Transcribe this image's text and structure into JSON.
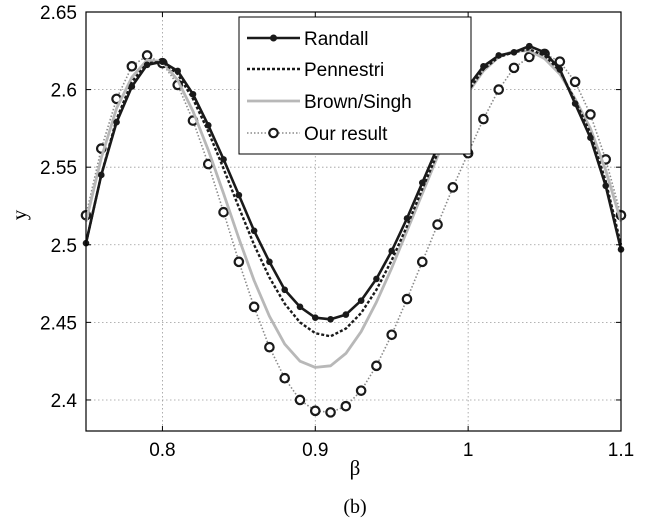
{
  "chart_data": {
    "type": "line",
    "xlabel": "β",
    "ylabel": "y",
    "caption": "(b)",
    "xlim": [
      0.75,
      1.1
    ],
    "ylim": [
      2.38,
      2.65
    ],
    "xticks": [
      0.8,
      0.9,
      1.0,
      1.1
    ],
    "xtick_labels": [
      "0.8",
      "0.9",
      "1",
      "1.1"
    ],
    "yticks": [
      2.4,
      2.45,
      2.5,
      2.55,
      2.6,
      2.65
    ],
    "ytick_labels": [
      "2.4",
      "2.45",
      "2.5",
      "2.55",
      "2.6",
      "2.65"
    ],
    "grid": true,
    "legend_position": "top-center",
    "series": [
      {
        "name": "Randall",
        "style": "solid-dot",
        "color": "#1a1a1a",
        "x": [
          0.75,
          0.76,
          0.77,
          0.78,
          0.79,
          0.8,
          0.81,
          0.82,
          0.83,
          0.84,
          0.85,
          0.86,
          0.87,
          0.88,
          0.89,
          0.9,
          0.91,
          0.92,
          0.93,
          0.94,
          0.95,
          0.96,
          0.97,
          0.98,
          0.99,
          1.0,
          1.01,
          1.02,
          1.03,
          1.04,
          1.05,
          1.06,
          1.07,
          1.08,
          1.09,
          1.1
        ],
        "y": [
          2.501,
          2.545,
          2.579,
          2.602,
          2.616,
          2.618,
          2.612,
          2.597,
          2.577,
          2.555,
          2.532,
          2.509,
          2.489,
          2.471,
          2.46,
          2.453,
          2.452,
          2.455,
          2.464,
          2.478,
          2.496,
          2.517,
          2.54,
          2.563,
          2.584,
          2.602,
          2.615,
          2.622,
          2.624,
          2.628,
          2.624,
          2.613,
          2.591,
          2.569,
          2.538,
          2.497
        ]
      },
      {
        "name": "Pennestri",
        "style": "dashed",
        "color": "#1a1a1a",
        "x": [
          0.75,
          0.76,
          0.77,
          0.78,
          0.79,
          0.8,
          0.81,
          0.82,
          0.83,
          0.84,
          0.85,
          0.86,
          0.87,
          0.88,
          0.89,
          0.9,
          0.91,
          0.92,
          0.93,
          0.94,
          0.95,
          0.96,
          0.97,
          0.98,
          0.99,
          1.0,
          1.01,
          1.02,
          1.03,
          1.04,
          1.05,
          1.06,
          1.07,
          1.08,
          1.09,
          1.1
        ],
        "y": [
          2.501,
          2.545,
          2.581,
          2.605,
          2.617,
          2.618,
          2.61,
          2.594,
          2.573,
          2.549,
          2.524,
          2.5,
          2.479,
          2.462,
          2.45,
          2.443,
          2.441,
          2.446,
          2.456,
          2.471,
          2.49,
          2.512,
          2.536,
          2.559,
          2.58,
          2.599,
          2.613,
          2.621,
          2.624,
          2.626,
          2.622,
          2.612,
          2.593,
          2.572,
          2.541,
          2.5
        ]
      },
      {
        "name": "Brown/Singh",
        "style": "solid-light",
        "color": "#b8b8b8",
        "x": [
          0.75,
          0.76,
          0.77,
          0.78,
          0.79,
          0.8,
          0.81,
          0.82,
          0.83,
          0.84,
          0.85,
          0.86,
          0.87,
          0.88,
          0.89,
          0.9,
          0.91,
          0.92,
          0.93,
          0.94,
          0.95,
          0.96,
          0.97,
          0.98,
          0.99,
          1.0,
          1.01,
          1.02,
          1.03,
          1.04,
          1.05,
          1.06,
          1.07,
          1.08,
          1.09,
          1.1
        ],
        "y": [
          2.515,
          2.556,
          2.588,
          2.608,
          2.619,
          2.618,
          2.606,
          2.586,
          2.561,
          2.533,
          2.504,
          2.477,
          2.454,
          2.436,
          2.425,
          2.421,
          2.422,
          2.43,
          2.444,
          2.463,
          2.485,
          2.509,
          2.533,
          2.557,
          2.579,
          2.598,
          2.612,
          2.621,
          2.625,
          2.625,
          2.62,
          2.61,
          2.594,
          2.575,
          2.548,
          2.515
        ]
      },
      {
        "name": "Our result",
        "style": "dotted-circle",
        "color": "#888888",
        "x": [
          0.75,
          0.76,
          0.77,
          0.78,
          0.79,
          0.8,
          0.81,
          0.82,
          0.83,
          0.84,
          0.85,
          0.86,
          0.87,
          0.88,
          0.89,
          0.9,
          0.91,
          0.92,
          0.93,
          0.94,
          0.95,
          0.96,
          0.97,
          0.98,
          0.99,
          1.0,
          1.01,
          1.02,
          1.03,
          1.04,
          1.05,
          1.06,
          1.07,
          1.08,
          1.09,
          1.1
        ],
        "y": [
          2.519,
          2.562,
          2.594,
          2.615,
          2.622,
          2.617,
          2.603,
          2.58,
          2.552,
          2.521,
          2.489,
          2.46,
          2.434,
          2.414,
          2.4,
          2.393,
          2.392,
          2.396,
          2.406,
          2.422,
          2.442,
          2.465,
          2.489,
          2.513,
          2.537,
          2.559,
          2.581,
          2.6,
          2.614,
          2.621,
          2.623,
          2.618,
          2.605,
          2.584,
          2.555,
          2.519
        ]
      }
    ]
  }
}
